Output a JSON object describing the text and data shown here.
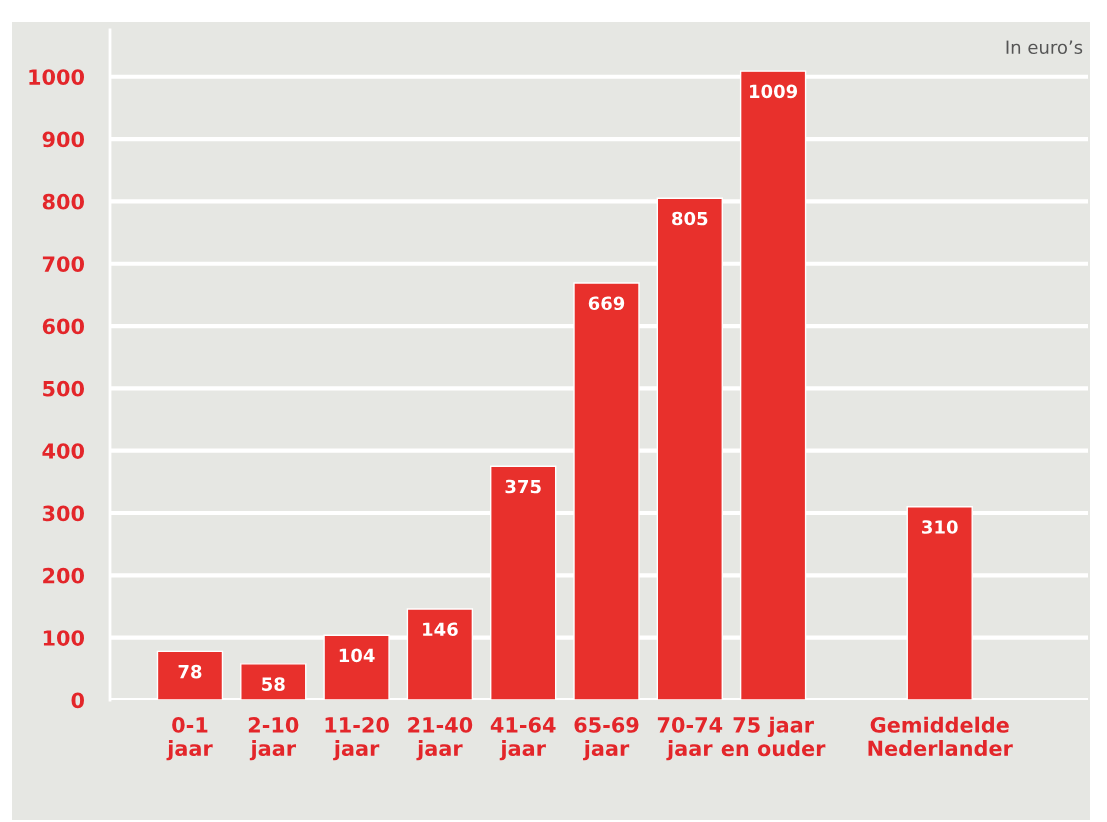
{
  "chart_data": {
    "type": "bar",
    "categories": [
      "0-1\njaar",
      "2-10\njaar",
      "11-20\njaar",
      "21-40\njaar",
      "41-64\njaar",
      "65-69\njaar",
      "70-74\njaar",
      "75 jaar\nen ouder",
      null,
      "Gemiddelde\nNederlander"
    ],
    "values": [
      78,
      58,
      104,
      146,
      375,
      669,
      805,
      1009,
      null,
      310
    ],
    "color": "#e8302c",
    "ylim": [
      0,
      1075
    ],
    "yticks": [
      0,
      100,
      200,
      300,
      400,
      500,
      600,
      700,
      800,
      900,
      1000
    ],
    "grid": "y",
    "data_labels": true,
    "legend": false,
    "annotations": [
      "In euro’s"
    ]
  }
}
